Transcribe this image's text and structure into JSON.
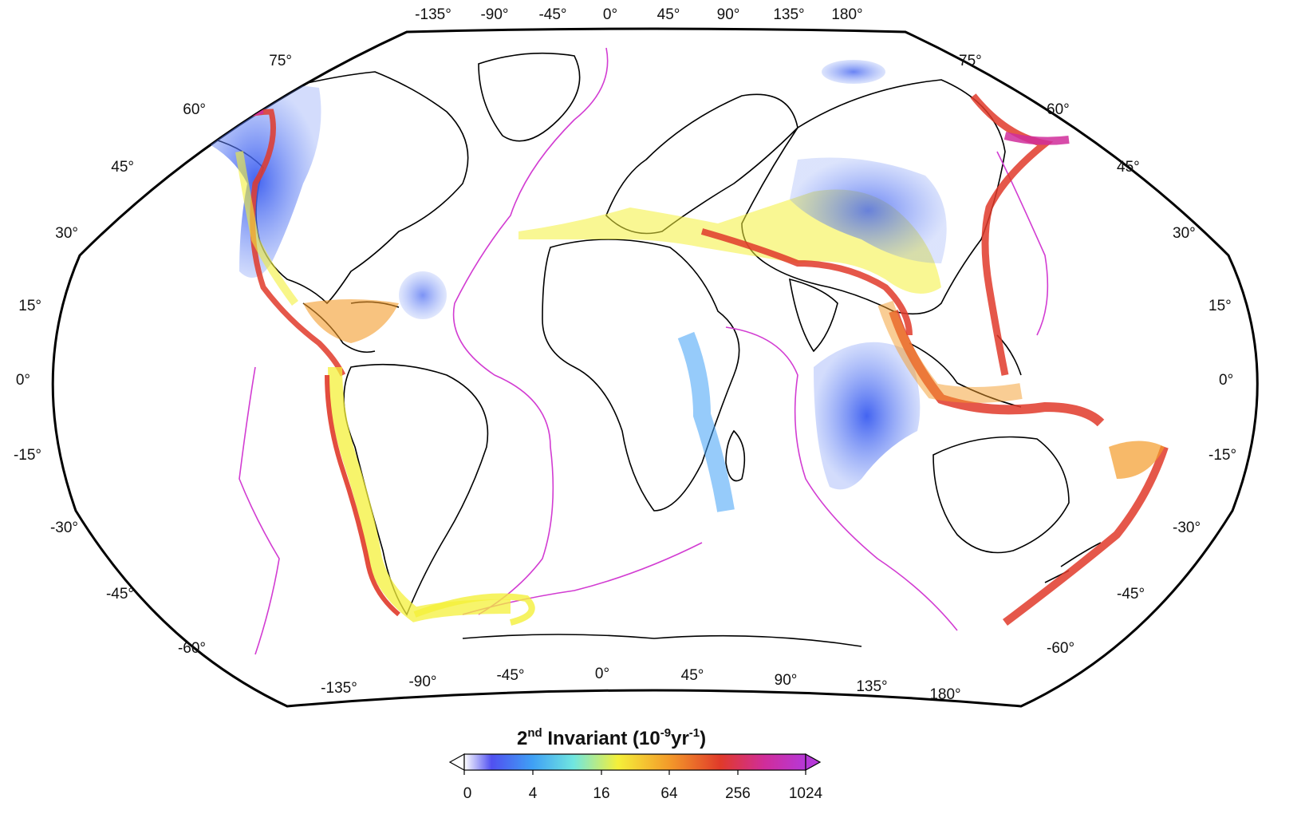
{
  "map": {
    "projection": "Winkel Tripel / Robinson-like",
    "central_meridian_label": "0°",
    "top_lon_labels": [
      "-135°",
      "-90°",
      "-45°",
      "0°",
      "45°",
      "90°",
      "135°",
      "180°"
    ],
    "bottom_lon_labels": [
      "-135°",
      "-90°",
      "-45°",
      "0°",
      "45°",
      "90°",
      "135°",
      "180°"
    ],
    "left_lat_labels": [
      "75°",
      "60°",
      "45°",
      "30°",
      "15°",
      "0°",
      "-15°",
      "-30°",
      "-45°",
      "-60°"
    ],
    "right_lat_labels": [
      "75°",
      "60°",
      "45°",
      "30°",
      "15°",
      "0°",
      "-15°",
      "-30°",
      "-45°",
      "-60°"
    ],
    "colors": {
      "plate_boundary": "#d23cd2",
      "coastline": "#000000",
      "frame": "#000000"
    }
  },
  "colorbar": {
    "title_prefix": "2",
    "title_sup": "nd",
    "title_main": " Invariant (10",
    "title_exp": "-9",
    "title_unit": "yr",
    "title_unit_exp": "-1",
    "title_close": ")",
    "tick_labels": [
      "0",
      "4",
      "16",
      "64",
      "256",
      "1024"
    ],
    "colors": [
      "#ffffff",
      "#5050f0",
      "#3fa0f5",
      "#70e6e0",
      "#f4f03a",
      "#f39b2a",
      "#e03a2a",
      "#d02d9a",
      "#b638d8"
    ]
  }
}
